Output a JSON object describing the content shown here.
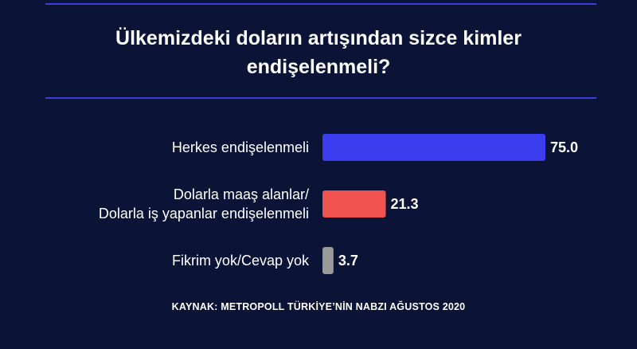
{
  "header": {
    "title_line1": "Ülkemizdeki doların artışından sizce kimler",
    "title_line2": "endişelenmeli?"
  },
  "footer": {
    "source": "KAYNAK: METROPOLL TÜRKİYE’NİN NABZI AĞUSTOS 2020"
  },
  "chart_data": {
    "type": "bar",
    "orientation": "horizontal",
    "title": "Ülkemizdeki doların artışından sizce kimler endişelenmeli?",
    "categories": [
      [
        "Herkes endişelenmeli"
      ],
      [
        "Dolarla maaş alanlar/",
        "Dolarla iş yapanlar endişelenmeli"
      ],
      [
        "Fikrim yok/Cevap yok"
      ]
    ],
    "values": [
      75.0,
      21.3,
      3.7
    ],
    "value_labels": [
      "75.0",
      "21.3",
      "3.7"
    ],
    "colors": [
      "#3d3df0",
      "#f0524f",
      "#9a9a9a"
    ],
    "xlim": [
      0,
      75
    ],
    "grid": false,
    "legend": "none"
  }
}
